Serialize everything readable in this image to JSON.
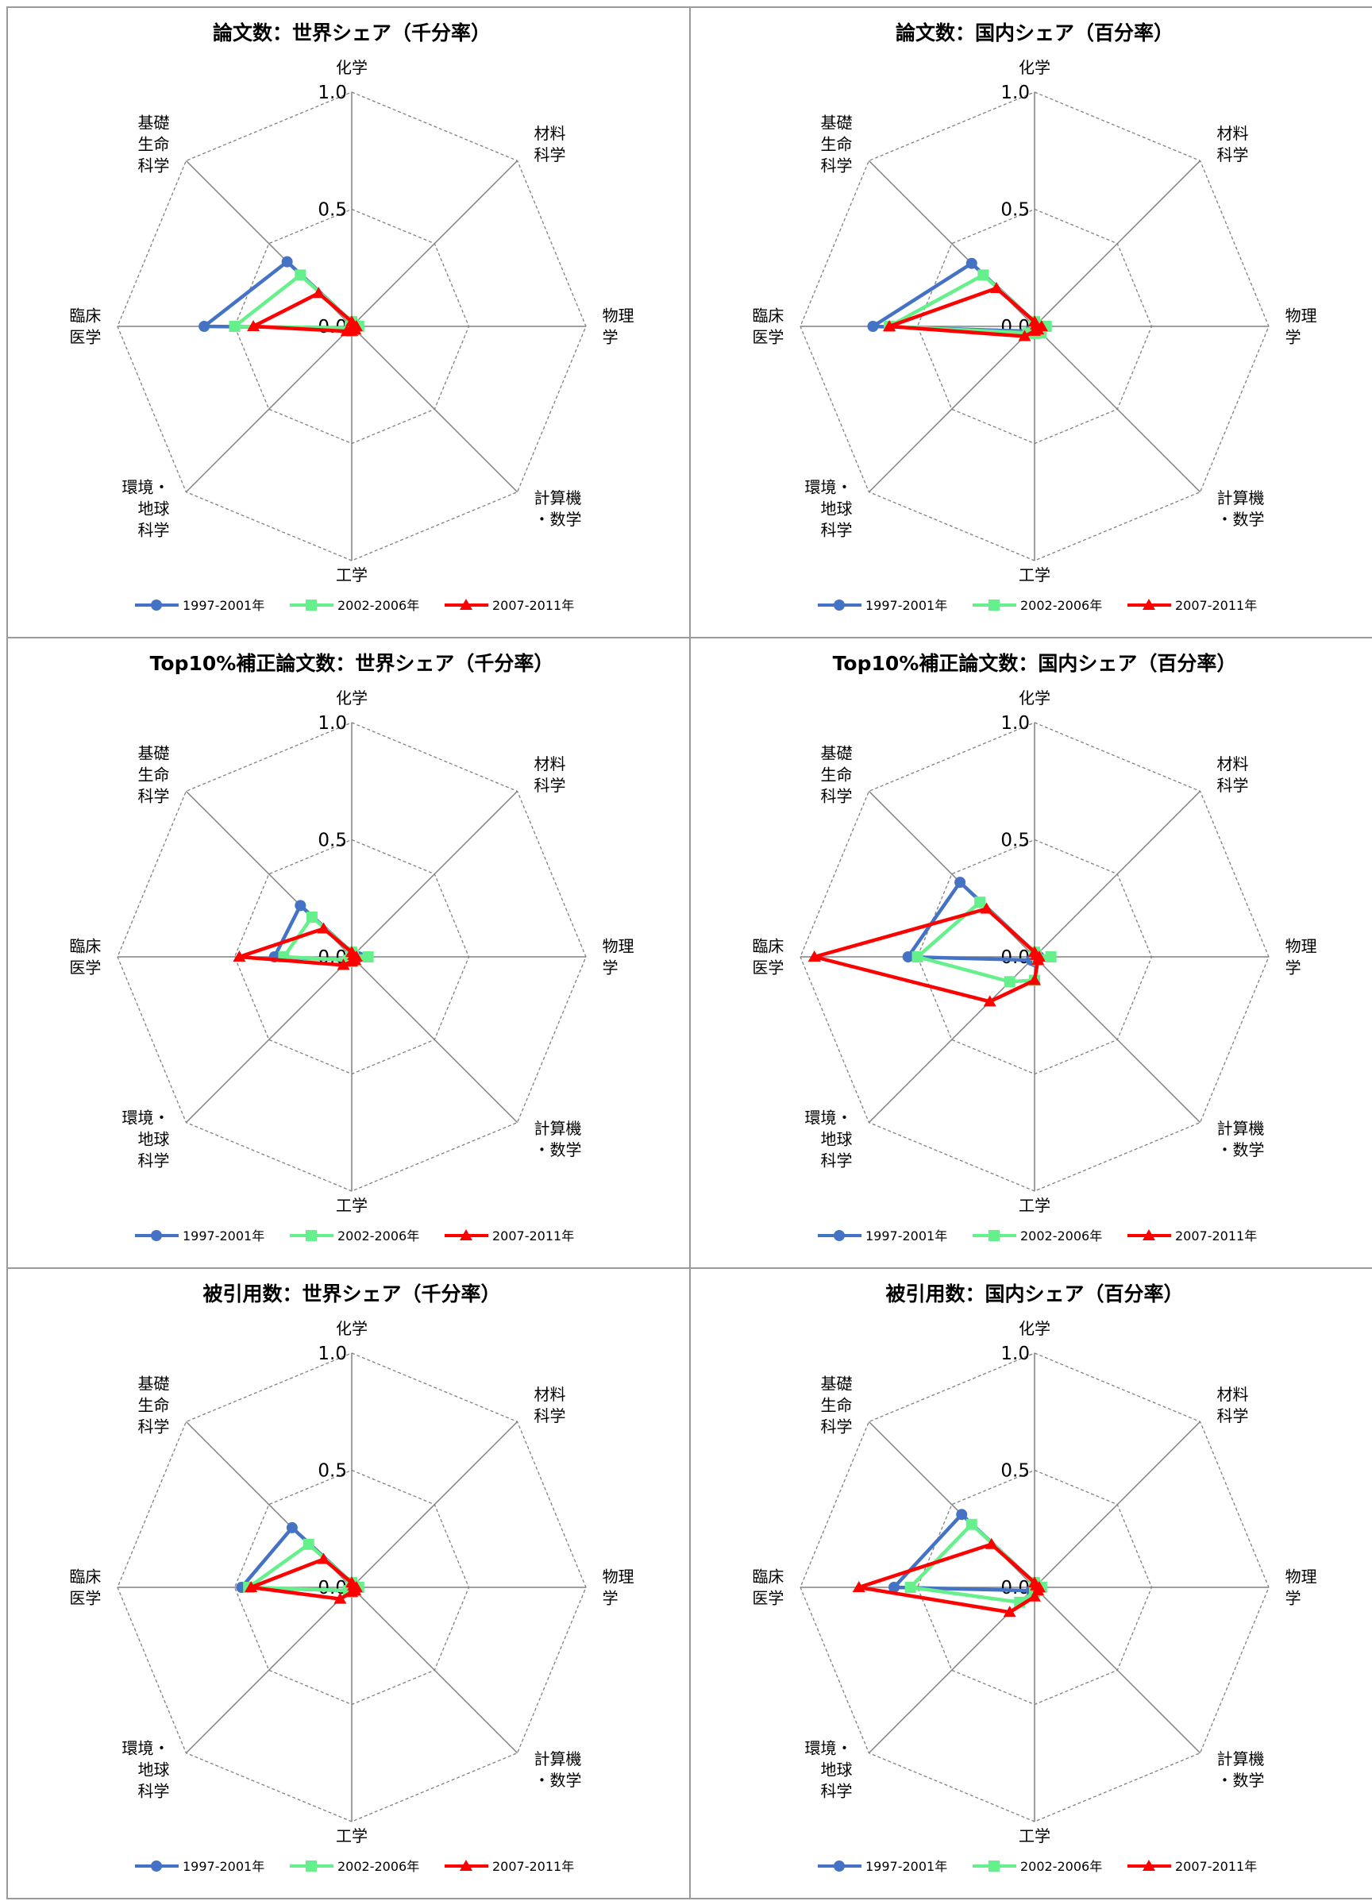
{
  "axes": [
    "化学",
    "材料科学",
    "物理学",
    "計算機・数学",
    "工学",
    "環境・地球科学",
    "臨床医学",
    "基礎生命科学"
  ],
  "axis_label_lines": [
    [
      "化学"
    ],
    [
      "材料",
      "科学"
    ],
    [
      "物理",
      "学"
    ],
    [
      "計算機",
      "・数学"
    ],
    [
      "工学"
    ],
    [
      "環境・",
      "地球",
      "科学"
    ],
    [
      "臨床",
      "医学"
    ],
    [
      "基礎",
      "生命",
      "科学"
    ]
  ],
  "ticks": [
    "0.0",
    "0.5",
    "1.0"
  ],
  "legend": [
    "1997-2001年",
    "2002-2006年",
    "2007-2011年"
  ],
  "colors": {
    "s1997": "#4472c4",
    "s2002": "#66f08c",
    "s2007": "#ff0000"
  },
  "chart_data": [
    {
      "type": "radar",
      "title": "論文数：世界シェア（千分率）",
      "categories": [
        "化学",
        "材料科学",
        "物理学",
        "計算機・数学",
        "工学",
        "環境・地球科学",
        "臨床医学",
        "基礎生命科学"
      ],
      "rlim": [
        0,
        1.0
      ],
      "series": [
        {
          "name": "1997-2001年",
          "values": [
            0.02,
            0.01,
            0.03,
            0.02,
            0.02,
            0.01,
            0.63,
            0.39
          ]
        },
        {
          "name": "2002-2006年",
          "values": [
            0.02,
            0.01,
            0.03,
            0.02,
            0.02,
            0.01,
            0.5,
            0.31
          ]
        },
        {
          "name": "2007-2011年",
          "values": [
            0.02,
            0.01,
            0.02,
            0.02,
            0.02,
            0.03,
            0.42,
            0.2
          ]
        }
      ]
    },
    {
      "type": "radar",
      "title": "論文数：国内シェア（百分率）",
      "categories": [
        "化学",
        "材料科学",
        "物理学",
        "計算機・数学",
        "工学",
        "環境・地球科学",
        "臨床医学",
        "基礎生命科学"
      ],
      "rlim": [
        0,
        1.0
      ],
      "series": [
        {
          "name": "1997-2001年",
          "values": [
            0.02,
            0.01,
            0.03,
            0.04,
            0.03,
            0.03,
            0.69,
            0.38
          ]
        },
        {
          "name": "2002-2006年",
          "values": [
            0.02,
            0.01,
            0.05,
            0.04,
            0.03,
            0.04,
            0.62,
            0.31
          ]
        },
        {
          "name": "2007-2011年",
          "values": [
            0.02,
            0.01,
            0.03,
            0.02,
            0.02,
            0.06,
            0.62,
            0.23
          ]
        }
      ]
    },
    {
      "type": "radar",
      "title": "Top10%補正論文数：世界シェア（千分率）",
      "categories": [
        "化学",
        "材料科学",
        "物理学",
        "計算機・数学",
        "工学",
        "環境・地球科学",
        "臨床医学",
        "基礎生命科学"
      ],
      "rlim": [
        0,
        1.0
      ],
      "series": [
        {
          "name": "1997-2001年",
          "values": [
            0.02,
            0.01,
            0.03,
            0.02,
            0.02,
            0.02,
            0.33,
            0.31
          ]
        },
        {
          "name": "2002-2006年",
          "values": [
            0.02,
            0.01,
            0.07,
            0.02,
            0.02,
            0.02,
            0.29,
            0.24
          ]
        },
        {
          "name": "2007-2011年",
          "values": [
            0.02,
            0.01,
            0.02,
            0.02,
            0.02,
            0.05,
            0.48,
            0.17
          ]
        }
      ]
    },
    {
      "type": "radar",
      "title": "Top10%補正論文数：国内シェア（百分率）",
      "categories": [
        "化学",
        "材料科学",
        "物理学",
        "計算機・数学",
        "工学",
        "環境・地球科学",
        "臨床医学",
        "基礎生命科学"
      ],
      "rlim": [
        0,
        1.0
      ],
      "series": [
        {
          "name": "1997-2001年",
          "values": [
            0.02,
            0.01,
            0.02,
            0.02,
            0.02,
            0.02,
            0.54,
            0.45
          ]
        },
        {
          "name": "2002-2006年",
          "values": [
            0.02,
            0.01,
            0.07,
            0.02,
            0.1,
            0.15,
            0.5,
            0.33
          ]
        },
        {
          "name": "2007-2011年",
          "values": [
            0.02,
            0.01,
            0.02,
            0.02,
            0.1,
            0.27,
            0.94,
            0.29
          ]
        }
      ]
    },
    {
      "type": "radar",
      "title": "被引用数：世界シェア（千分率）",
      "categories": [
        "化学",
        "材料科学",
        "物理学",
        "計算機・数学",
        "工学",
        "環境・地球科学",
        "臨床医学",
        "基礎生命科学"
      ],
      "rlim": [
        0,
        1.0
      ],
      "series": [
        {
          "name": "1997-2001年",
          "values": [
            0.02,
            0.01,
            0.03,
            0.02,
            0.02,
            0.02,
            0.47,
            0.36
          ]
        },
        {
          "name": "2002-2006年",
          "values": [
            0.02,
            0.01,
            0.03,
            0.02,
            0.02,
            0.02,
            0.44,
            0.26
          ]
        },
        {
          "name": "2007-2011年",
          "values": [
            0.02,
            0.01,
            0.02,
            0.02,
            0.02,
            0.07,
            0.43,
            0.17
          ]
        }
      ]
    },
    {
      "type": "radar",
      "title": "被引用数：国内シェア（百分率）",
      "categories": [
        "化学",
        "材料科学",
        "物理学",
        "計算機・数学",
        "工学",
        "環境・地球科学",
        "臨床医学",
        "基礎生命科学"
      ],
      "rlim": [
        0,
        1.0
      ],
      "series": [
        {
          "name": "1997-2001年",
          "values": [
            0.02,
            0.01,
            0.02,
            0.02,
            0.02,
            0.02,
            0.6,
            0.44
          ]
        },
        {
          "name": "2002-2006年",
          "values": [
            0.02,
            0.01,
            0.03,
            0.02,
            0.02,
            0.09,
            0.53,
            0.38
          ]
        },
        {
          "name": "2007-2011年",
          "values": [
            0.02,
            0.01,
            0.02,
            0.02,
            0.04,
            0.15,
            0.75,
            0.26
          ]
        }
      ]
    }
  ]
}
